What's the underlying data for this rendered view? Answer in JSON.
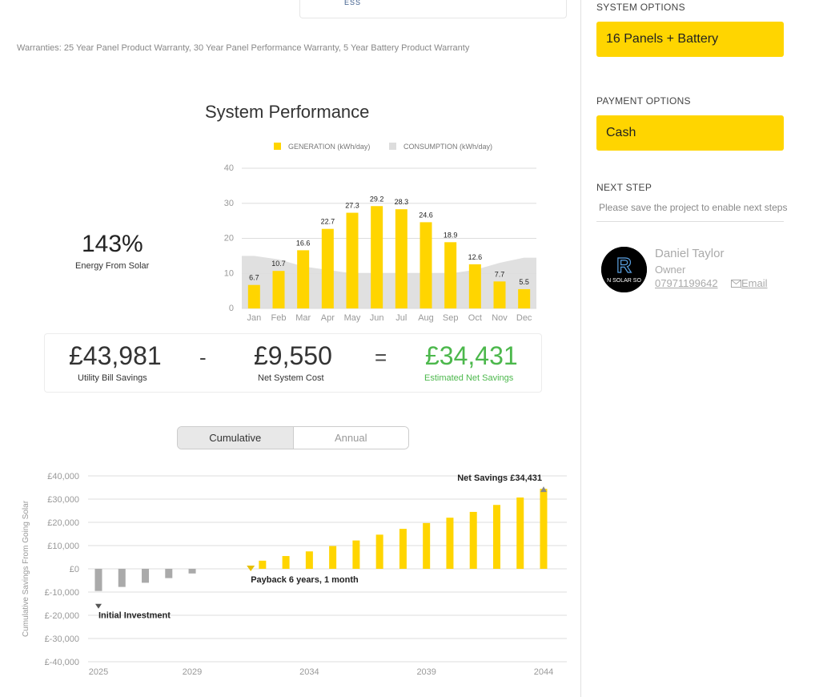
{
  "top_card": {
    "text": "ESS"
  },
  "warranties": "Warranties: 25 Year Panel Product Warranty, 30 Year Panel Performance Warranty, 5 Year Battery Product Warranty",
  "performance": {
    "title": "System Performance",
    "energy_pct": "143%",
    "energy_label": "Energy From Solar"
  },
  "savings": {
    "utility_value": "£43,981",
    "utility_label": "Utility Bill Savings",
    "minus": "-",
    "cost_value": "£9,550",
    "cost_label": "Net System Cost",
    "equals": "=",
    "net_value": "£34,431",
    "net_label": "Estimated Net Savings",
    "net_color": "#4cb84c"
  },
  "toggle": {
    "cumulative": "Cumulative",
    "annual": "Annual"
  },
  "sidebar": {
    "system_options_label": "SYSTEM OPTIONS",
    "system_option": "16 Panels + Battery",
    "payment_options_label": "PAYMENT OPTIONS",
    "payment_option": "Cash",
    "next_step_label": "NEXT STEP",
    "next_step_hint": "Please save the project to enable next steps",
    "accent_color": "#ffd500"
  },
  "owner": {
    "name": "Daniel Taylor",
    "role": "Owner",
    "phone": "07971199642",
    "email_label": "Email",
    "email_icon": "envelope-icon",
    "avatar_text": "N SOLAR SO",
    "avatar_initial": "R"
  },
  "chart_data": [
    {
      "type": "bar",
      "legend": [
        "GENERATION (kWh/day)",
        "CONSUMPTION (kWh/day)"
      ],
      "legend_position": "top",
      "categories": [
        "Jan",
        "Feb",
        "Mar",
        "Apr",
        "May",
        "Jun",
        "Jul",
        "Aug",
        "Sep",
        "Oct",
        "Nov",
        "Dec"
      ],
      "series": [
        {
          "name": "GENERATION (kWh/day)",
          "type": "bar",
          "color": "#ffd500",
          "values": [
            6.7,
            10.7,
            16.6,
            22.7,
            27.3,
            29.2,
            28.3,
            24.6,
            18.9,
            12.6,
            7.7,
            5.5
          ]
        },
        {
          "name": "CONSUMPTION (kWh/day)",
          "type": "area",
          "color": "#dddddd",
          "values": [
            15,
            14,
            12,
            11,
            10,
            10,
            10,
            10,
            10,
            11,
            13,
            14.5
          ]
        }
      ],
      "yticks": [
        0,
        10,
        20,
        30,
        40
      ],
      "ylim": [
        0,
        40
      ],
      "grid": true
    },
    {
      "type": "bar",
      "ylabel": "Cumulative Savings From Going Solar",
      "x": [
        2025,
        2026,
        2027,
        2028,
        2029,
        2030,
        2031,
        2032,
        2033,
        2034,
        2035,
        2036,
        2037,
        2038,
        2039,
        2040,
        2041,
        2042,
        2043,
        2044
      ],
      "values": [
        -9550,
        -7800,
        -6000,
        -4000,
        -2000,
        0,
        0,
        3500,
        5500,
        7500,
        9800,
        12200,
        14700,
        17200,
        19700,
        22000,
        24500,
        27500,
        30700,
        34431
      ],
      "negative_color": "#aaaaaa",
      "positive_color": "#ffd500",
      "xticks": [
        2025,
        2029,
        2034,
        2039,
        2044
      ],
      "yticks": [
        "£40,000",
        "£30,000",
        "£20,000",
        "£10,000",
        "£0",
        "£-10,000",
        "£-20,000",
        "£-30,000",
        "£-40,000"
      ],
      "ylim": [
        -40000,
        40000
      ],
      "grid": true,
      "annotations": {
        "initial": "Initial Investment",
        "payback": "Payback 6 years, 1 month",
        "net": "Net Savings £34,431"
      }
    }
  ]
}
